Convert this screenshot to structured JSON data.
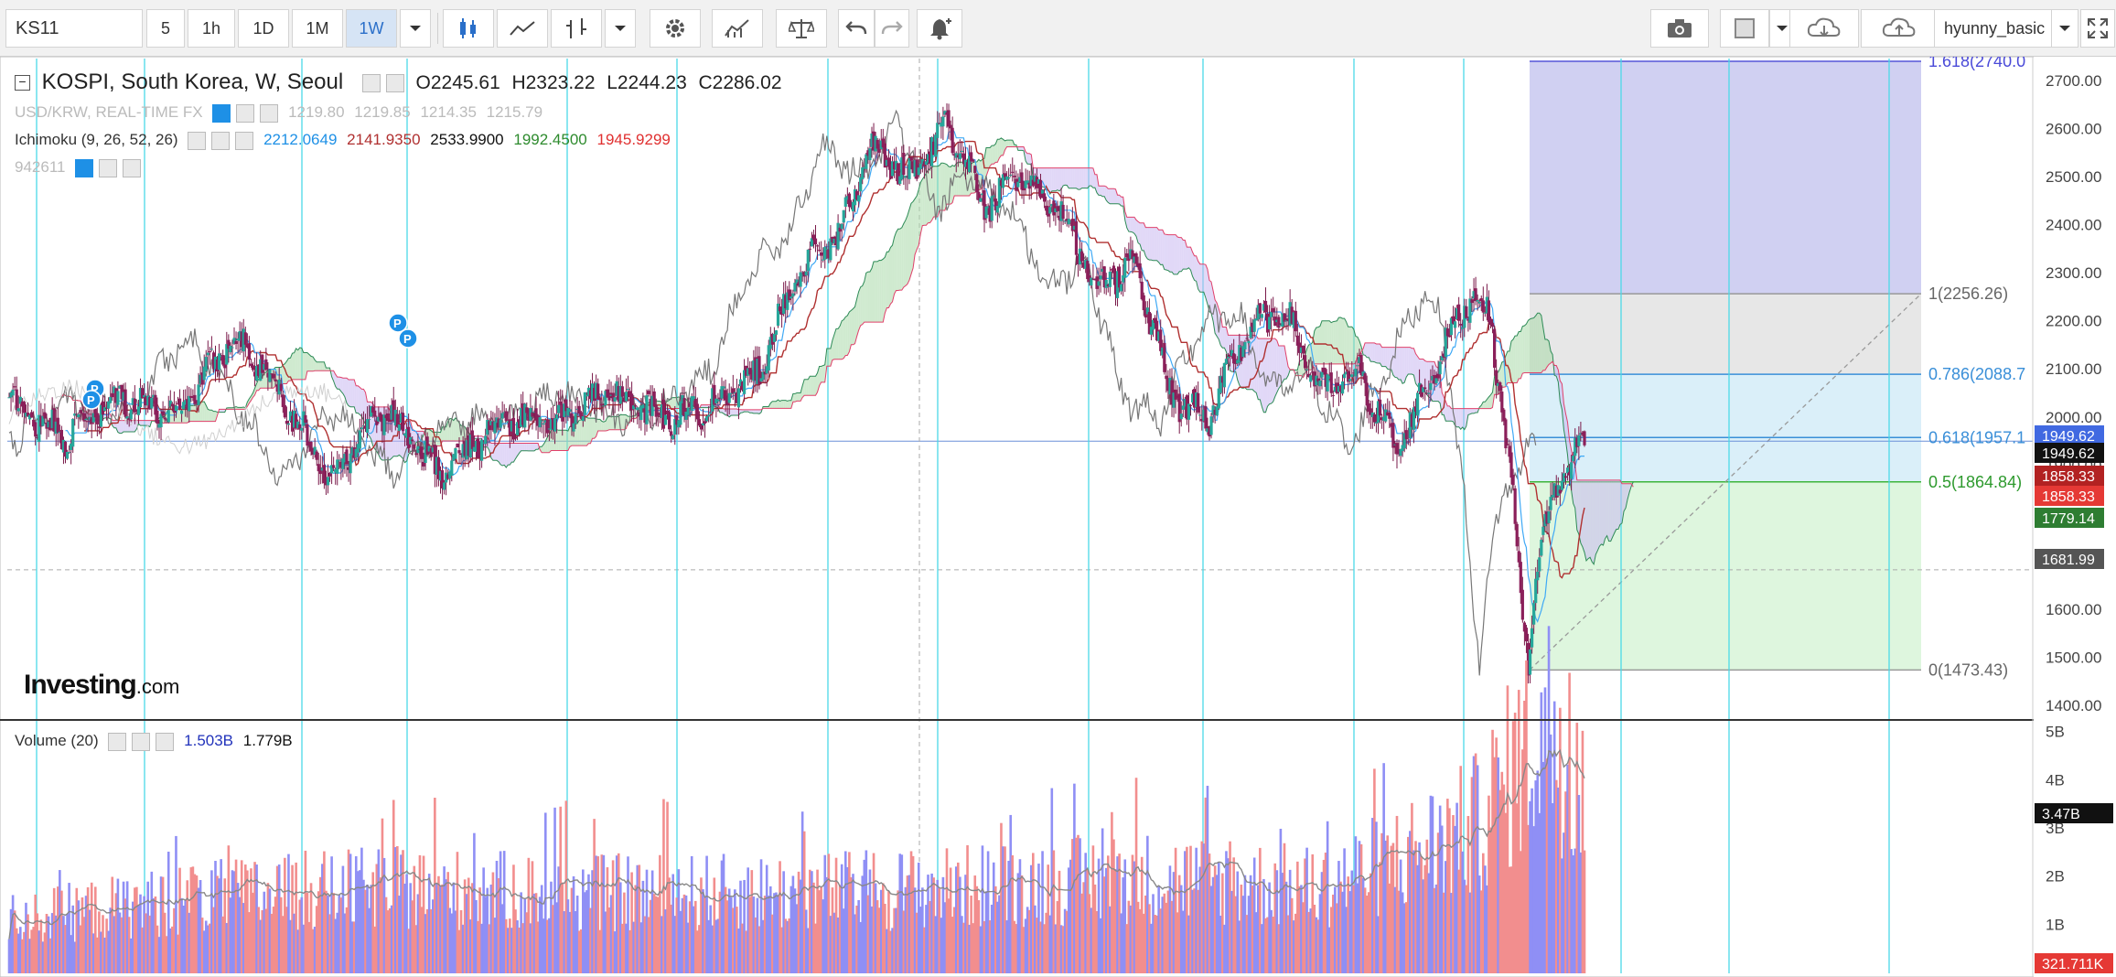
{
  "toolbar": {
    "symbol": "KS11",
    "intervals": [
      "5",
      "1h",
      "1D",
      "1M",
      "1W"
    ],
    "active_interval": "1W",
    "user": "hyunny_basic"
  },
  "icons": [
    "chevron-down-icon",
    "candles-icon",
    "line-chart-icon",
    "bars-icon",
    "gear-icon",
    "indicators-icon",
    "compare-icon",
    "undo-icon",
    "redo-icon",
    "alert-icon",
    "camera-icon",
    "color-square-icon",
    "cloud-download-icon",
    "cloud-upload-icon",
    "fullscreen-icon"
  ],
  "legend": {
    "title": "KOSPI, South Korea, W, Seoul",
    "open": "O2245.61",
    "high": "H2323.22",
    "low": "L2244.23",
    "close": "C2286.02",
    "fx_label": "USD/KRW, REAL-TIME FX",
    "fx_values": [
      "1219.80",
      "1219.85",
      "1214.35",
      "1215.79"
    ],
    "ichimoku_label": "Ichimoku (9, 26, 52, 26)",
    "ichimoku_values": [
      "2212.0649",
      "2141.9350",
      "2533.9900",
      "1992.4500",
      "1945.9299"
    ],
    "study_id": "942611",
    "volume_label": "Volume (20)",
    "volume_values": [
      "1.503B",
      "1.779B"
    ]
  },
  "logo": {
    "main": "Investing",
    "suffix": ".com"
  },
  "colors": {
    "up": "#26a69a",
    "down": "#8b1f5a",
    "fx": "#bbbbbb",
    "tenkan": "#3fa9f5",
    "kijun": "#b03030",
    "chikou": "#777777",
    "span_a": "#2e8b57",
    "span_b": "#e0406a",
    "vol_up": "#8f8ff5",
    "vol_down": "#f28e8e",
    "vline": "#4ad9e8",
    "fib_top": "#c8c8f0",
    "fib_mid1": "#e3e3e3",
    "fib_mid2": "#d4ecf8",
    "fib_low": "#d8f5d8"
  },
  "chart_data": [
    {
      "type": "candlestick",
      "title": "KOSPI, South Korea, W, Seoul",
      "ylim": [
        1380,
        2760
      ],
      "y_ticks": [
        "2700.00",
        "2600.00",
        "2500.00",
        "2400.00",
        "2300.00",
        "2200.00",
        "2100.00",
        "2000.00",
        "1900.00",
        "1800.00",
        "1700.00",
        "1600.00",
        "1500.00",
        "1400.00"
      ],
      "grid": false,
      "key_points": [
        {
          "x": 0,
          "y": 2030
        },
        {
          "x": 30,
          "y": 1960
        },
        {
          "x": 60,
          "y": 2040
        },
        {
          "x": 90,
          "y": 2010
        },
        {
          "x": 120,
          "y": 2170
        },
        {
          "x": 140,
          "y": 2080
        },
        {
          "x": 170,
          "y": 1880
        },
        {
          "x": 200,
          "y": 2020
        },
        {
          "x": 230,
          "y": 1880
        },
        {
          "x": 260,
          "y": 1990
        },
        {
          "x": 290,
          "y": 1990
        },
        {
          "x": 320,
          "y": 2050
        },
        {
          "x": 350,
          "y": 2000
        },
        {
          "x": 380,
          "y": 2030
        },
        {
          "x": 400,
          "y": 2100
        },
        {
          "x": 420,
          "y": 2300
        },
        {
          "x": 440,
          "y": 2370
        },
        {
          "x": 460,
          "y": 2560
        },
        {
          "x": 480,
          "y": 2500
        },
        {
          "x": 500,
          "y": 2605
        },
        {
          "x": 520,
          "y": 2440
        },
        {
          "x": 540,
          "y": 2500
        },
        {
          "x": 560,
          "y": 2430
        },
        {
          "x": 580,
          "y": 2270
        },
        {
          "x": 600,
          "y": 2330
        },
        {
          "x": 620,
          "y": 2040
        },
        {
          "x": 640,
          "y": 2000
        },
        {
          "x": 660,
          "y": 2180
        },
        {
          "x": 680,
          "y": 2220
        },
        {
          "x": 700,
          "y": 2050
        },
        {
          "x": 720,
          "y": 2090
        },
        {
          "x": 740,
          "y": 1930
        },
        {
          "x": 760,
          "y": 2100
        },
        {
          "x": 780,
          "y": 2260
        },
        {
          "x": 790,
          "y": 2200
        },
        {
          "x": 800,
          "y": 1900
        },
        {
          "x": 810,
          "y": 1480
        },
        {
          "x": 815,
          "y": 1700
        },
        {
          "x": 825,
          "y": 1860
        },
        {
          "x": 840,
          "y": 1950
        }
      ],
      "price_labels": [
        "1949.62",
        "1949.62",
        "1858.33",
        "1858.33",
        "1779.14",
        "1681.99"
      ],
      "fibonacci": [
        {
          "level": "1.618(2740.0",
          "value": 2740.0
        },
        {
          "level": "1(2256.26)",
          "value": 2256.26
        },
        {
          "level": "0.786(2088.7",
          "value": 2088.7
        },
        {
          "level": "0.618(1957.1",
          "value": 1957.1
        },
        {
          "level": "0.5(1864.84)",
          "value": 1864.84
        },
        {
          "level": "0(1473.43)",
          "value": 1473.43
        }
      ]
    },
    {
      "type": "bar",
      "title": "Volume (20)",
      "ylim": [
        0,
        5300000000
      ],
      "y_ticks": [
        "5B",
        "4B",
        "3B",
        "2B",
        "1B"
      ],
      "last_labels": [
        "3.47B",
        "321.711K"
      ],
      "key_points": [
        {
          "x": 0,
          "y": 1.0
        },
        {
          "x": 100,
          "y": 1.4
        },
        {
          "x": 200,
          "y": 1.6
        },
        {
          "x": 300,
          "y": 1.5
        },
        {
          "x": 400,
          "y": 1.5
        },
        {
          "x": 500,
          "y": 1.6
        },
        {
          "x": 600,
          "y": 1.8
        },
        {
          "x": 700,
          "y": 1.6
        },
        {
          "x": 780,
          "y": 2.7
        },
        {
          "x": 800,
          "y": 3.7
        },
        {
          "x": 820,
          "y": 4.7
        },
        {
          "x": 840,
          "y": 3.7
        }
      ]
    }
  ]
}
